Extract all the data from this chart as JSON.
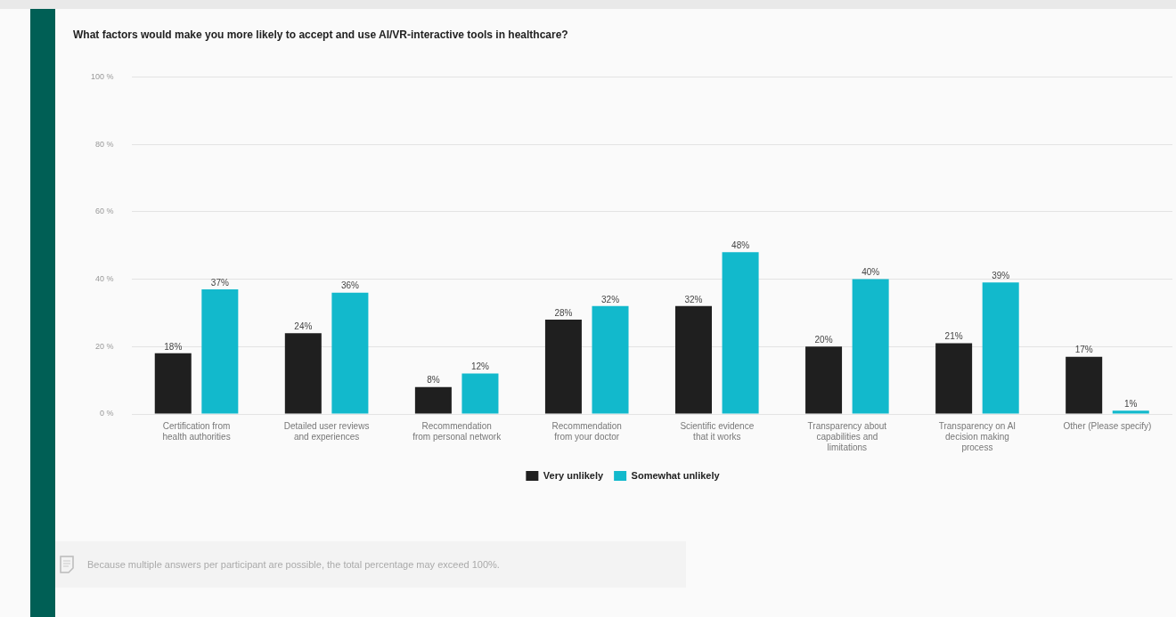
{
  "chart_data": {
    "type": "bar",
    "title": "What factors would make you more likely to accept and use AI/VR-interactive tools in healthcare?",
    "categories": [
      "Certification from health authorities",
      "Detailed user reviews and experiences",
      "Recommendation from personal network",
      "Recommendation from your doctor",
      "Scientific evidence that it works",
      "Transparency about capabilities and limitations",
      "Transparency on AI decision making process",
      "Other (Please specify)"
    ],
    "series": [
      {
        "name": "Very unlikely",
        "color": "#1f1f1f",
        "values": [
          18,
          24,
          8,
          28,
          32,
          20,
          21,
          17
        ],
        "value_labels": [
          "18%",
          "24%",
          "8%",
          "28%",
          "32%",
          "20%",
          "21%",
          "17%"
        ]
      },
      {
        "name": "Somewhat unlikely",
        "color": "#12b9cc",
        "values": [
          37,
          36,
          12,
          32,
          48,
          40,
          39,
          1
        ],
        "value_labels": [
          "37%",
          "36%",
          "12%",
          "32%",
          "48%",
          "40%",
          "39%",
          "1%"
        ]
      }
    ],
    "ylim": [
      0,
      100
    ],
    "yticks": [
      {
        "value": 0,
        "label": "0 %"
      },
      {
        "value": 20,
        "label": "20 %"
      },
      {
        "value": 40,
        "label": "40 %"
      },
      {
        "value": 60,
        "label": "60 %"
      },
      {
        "value": 80,
        "label": "80 %"
      },
      {
        "value": 100,
        "label": "100 %"
      }
    ],
    "grid": "y",
    "legend": "bottom",
    "annotations": [
      "Because multiple answers per participant are possible, the total percentage may exceed 100%."
    ]
  }
}
